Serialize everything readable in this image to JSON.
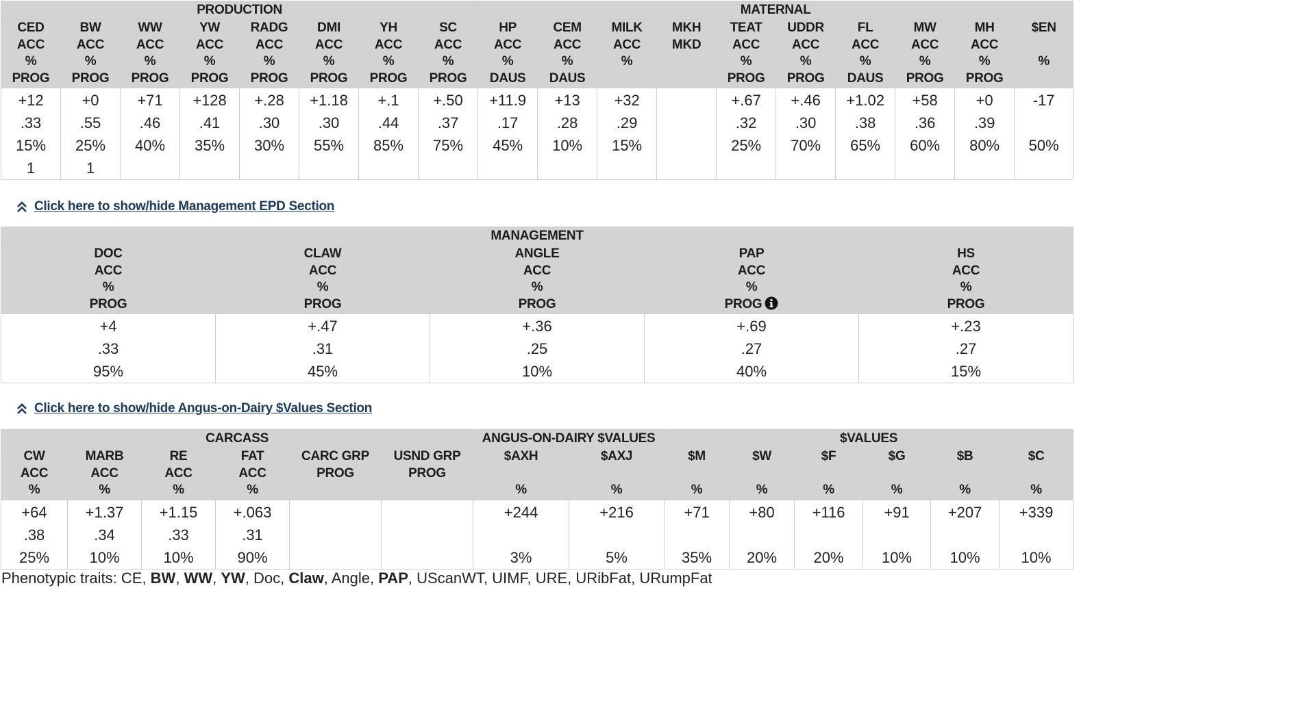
{
  "production_maternal": {
    "group_labels": [
      "PRODUCTION",
      "MATERNAL"
    ],
    "columns": [
      {
        "h": [
          "CED",
          "ACC",
          "%",
          "PROG"
        ],
        "v": [
          "+12",
          ".33",
          "15%",
          "1"
        ]
      },
      {
        "h": [
          "BW",
          "ACC",
          "%",
          "PROG"
        ],
        "v": [
          "+0",
          ".55",
          "25%",
          "1"
        ]
      },
      {
        "h": [
          "WW",
          "ACC",
          "%",
          "PROG"
        ],
        "v": [
          "+71",
          ".46",
          "40%",
          ""
        ]
      },
      {
        "h": [
          "YW",
          "ACC",
          "%",
          "PROG"
        ],
        "v": [
          "+128",
          ".41",
          "35%",
          ""
        ]
      },
      {
        "h": [
          "RADG",
          "ACC",
          "%",
          "PROG"
        ],
        "v": [
          "+.28",
          ".30",
          "30%",
          ""
        ]
      },
      {
        "h": [
          "DMI",
          "ACC",
          "%",
          "PROG"
        ],
        "v": [
          "+1.18",
          ".30",
          "55%",
          ""
        ]
      },
      {
        "h": [
          "YH",
          "ACC",
          "%",
          "PROG"
        ],
        "v": [
          "+.1",
          ".44",
          "85%",
          ""
        ]
      },
      {
        "h": [
          "SC",
          "ACC",
          "%",
          "PROG"
        ],
        "v": [
          "+.50",
          ".37",
          "75%",
          ""
        ]
      },
      {
        "h": [
          "HP",
          "ACC",
          "%",
          "DAUS"
        ],
        "v": [
          "+11.9",
          ".17",
          "45%",
          ""
        ]
      },
      {
        "h": [
          "CEM",
          "ACC",
          "%",
          "DAUS"
        ],
        "v": [
          "+13",
          ".28",
          "10%",
          ""
        ]
      },
      {
        "h": [
          "MILK",
          "ACC",
          "%",
          ""
        ],
        "v": [
          "+32",
          ".29",
          "15%",
          ""
        ]
      },
      {
        "h": [
          "MKH",
          "MKD",
          "",
          ""
        ],
        "v": [
          "",
          "",
          "",
          ""
        ]
      },
      {
        "h": [
          "TEAT",
          "ACC",
          "%",
          "PROG"
        ],
        "v": [
          "+.67",
          ".32",
          "25%",
          ""
        ]
      },
      {
        "h": [
          "UDDR",
          "ACC",
          "%",
          "PROG"
        ],
        "v": [
          "+.46",
          ".30",
          "70%",
          ""
        ]
      },
      {
        "h": [
          "FL",
          "ACC",
          "%",
          "DAUS"
        ],
        "v": [
          "+1.02",
          ".38",
          "65%",
          ""
        ]
      },
      {
        "h": [
          "MW",
          "ACC",
          "%",
          "PROG"
        ],
        "v": [
          "+58",
          ".36",
          "60%",
          ""
        ]
      },
      {
        "h": [
          "MH",
          "ACC",
          "%",
          "PROG"
        ],
        "v": [
          "+0",
          ".39",
          "80%",
          ""
        ]
      },
      {
        "h": [
          "$EN",
          "",
          "%",
          ""
        ],
        "v": [
          "-17",
          "",
          "50%",
          ""
        ]
      }
    ]
  },
  "management_toggle": "Click here to show/hide Management EPD Section",
  "management": {
    "group_label": "MANAGEMENT",
    "columns": [
      {
        "h": [
          "DOC",
          "ACC",
          "%",
          "PROG"
        ],
        "v": [
          "+4",
          ".33",
          "95%"
        ]
      },
      {
        "h": [
          "CLAW",
          "ACC",
          "%",
          "PROG"
        ],
        "v": [
          "+.47",
          ".31",
          "45%"
        ]
      },
      {
        "h": [
          "ANGLE",
          "ACC",
          "%",
          "PROG"
        ],
        "v": [
          "+.36",
          ".25",
          "10%"
        ]
      },
      {
        "h": [
          "PAP",
          "ACC",
          "%",
          "PROG"
        ],
        "v": [
          "+.69",
          ".27",
          "40%"
        ]
      },
      {
        "h": [
          "HS",
          "ACC",
          "%",
          "PROG"
        ],
        "v": [
          "+.23",
          ".27",
          "15%"
        ]
      }
    ],
    "info_icon": "info-circle-icon"
  },
  "dairy_toggle": "Click here to show/hide Angus-on-Dairy $Values Section",
  "carcass_values": {
    "group_labels": [
      "CARCASS",
      "ANGUS-ON-DAIRY $VALUES",
      "$VALUES"
    ],
    "columns": [
      {
        "h": [
          "CW",
          "ACC",
          "%"
        ],
        "v": [
          "+64",
          ".38",
          "25%"
        ]
      },
      {
        "h": [
          "MARB",
          "ACC",
          "%"
        ],
        "v": [
          "+1.37",
          ".34",
          "10%"
        ]
      },
      {
        "h": [
          "RE",
          "ACC",
          "%"
        ],
        "v": [
          "+1.15",
          ".33",
          "10%"
        ]
      },
      {
        "h": [
          "FAT",
          "ACC",
          "%"
        ],
        "v": [
          "+.063",
          ".31",
          "90%"
        ]
      },
      {
        "h": [
          "CARC GRP",
          "PROG",
          ""
        ],
        "v": [
          "",
          "",
          ""
        ]
      },
      {
        "h": [
          "USND GRP",
          "PROG",
          ""
        ],
        "v": [
          "",
          "",
          ""
        ]
      },
      {
        "h": [
          "$AXH",
          "",
          "%"
        ],
        "v": [
          "+244",
          "",
          "3%"
        ]
      },
      {
        "h": [
          "$AXJ",
          "",
          "%"
        ],
        "v": [
          "+216",
          "",
          "5%"
        ]
      },
      {
        "h": [
          "$M",
          "",
          "%"
        ],
        "v": [
          "+71",
          "",
          "35%"
        ]
      },
      {
        "h": [
          "$W",
          "",
          "%"
        ],
        "v": [
          "+80",
          "",
          "20%"
        ]
      },
      {
        "h": [
          "$F",
          "",
          "%"
        ],
        "v": [
          "+116",
          "",
          "20%"
        ]
      },
      {
        "h": [
          "$G",
          "",
          "%"
        ],
        "v": [
          "+91",
          "",
          "10%"
        ]
      },
      {
        "h": [
          "$B",
          "",
          "%"
        ],
        "v": [
          "+207",
          "",
          "10%"
        ]
      },
      {
        "h": [
          "$C",
          "",
          "%"
        ],
        "v": [
          "+339",
          "",
          "10%"
        ]
      }
    ]
  },
  "footer": {
    "label": "Phenotypic traits: ",
    "traits": [
      {
        "t": "CE",
        "bold": false
      },
      {
        "t": "BW",
        "bold": true
      },
      {
        "t": "WW",
        "bold": true
      },
      {
        "t": "YW",
        "bold": true
      },
      {
        "t": "Doc",
        "bold": false
      },
      {
        "t": "Claw",
        "bold": true
      },
      {
        "t": "Angle",
        "bold": false
      },
      {
        "t": "PAP",
        "bold": true
      },
      {
        "t": "UScanWT",
        "bold": false
      },
      {
        "t": "UIMF",
        "bold": false
      },
      {
        "t": "URE",
        "bold": false
      },
      {
        "t": "URibFat",
        "bold": false
      },
      {
        "t": "URumpFat",
        "bold": false
      }
    ]
  },
  "colors": {
    "header_bg": "#d3d3d3",
    "link": "#1c3a5c",
    "border": "#cfcfcf"
  },
  "toggle_icon": "chevron-double-up-icon"
}
